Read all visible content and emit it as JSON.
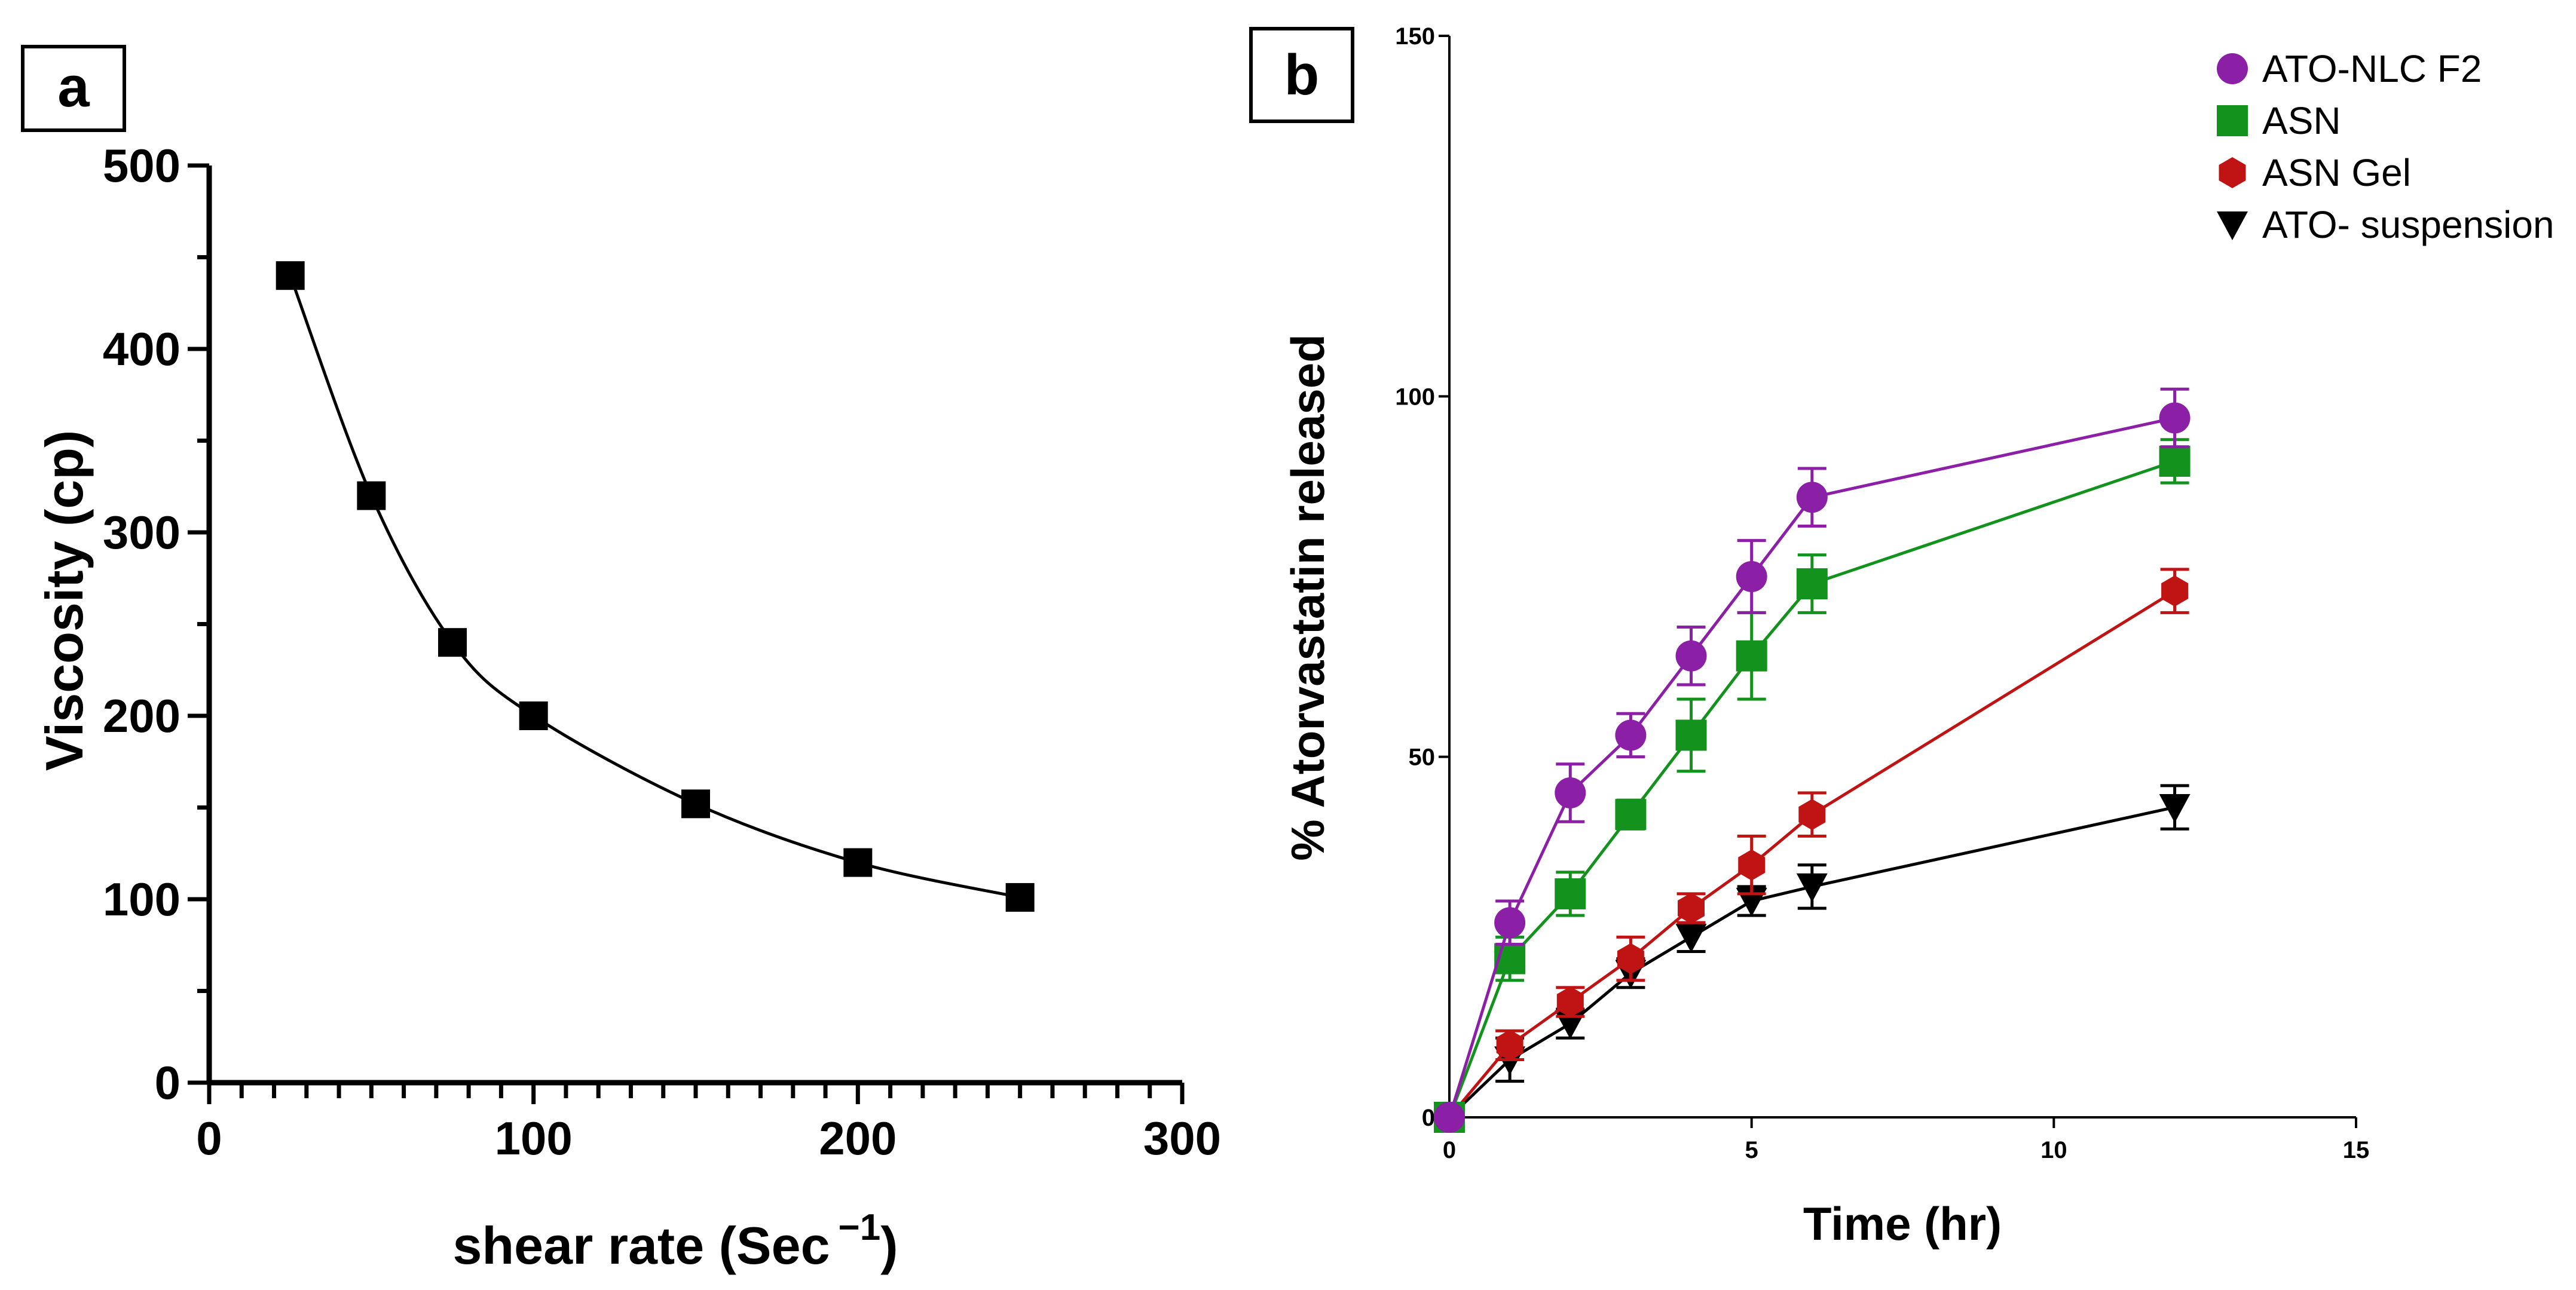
{
  "panels": [
    {
      "letter": "a"
    },
    {
      "letter": "b"
    }
  ],
  "chart_data": [
    {
      "type": "line",
      "panel": "a",
      "title": "",
      "xlabel": "shear rate (Sec",
      "xlabel_superscript": "−1",
      "xlabel_close": ")",
      "ylabel": "Viscosity (cp)",
      "xlim": [
        0,
        300
      ],
      "ylim": [
        0,
        500
      ],
      "xticks": [
        "0",
        "100",
        "200",
        "300"
      ],
      "yticks": [
        "0",
        "100",
        "200",
        "300",
        "400",
        "500"
      ],
      "grid": false,
      "series": [
        {
          "name": "Viscosity",
          "color": "#000000",
          "marker": "square",
          "x": [
            25,
            50,
            75,
            100,
            150,
            200,
            250
          ],
          "y": [
            440,
            320,
            240,
            200,
            152,
            120,
            101
          ]
        }
      ]
    },
    {
      "type": "line",
      "panel": "b",
      "title": "",
      "xlabel": "Time (hr)",
      "ylabel": "% Atorvastatin released",
      "xlim": [
        0,
        15
      ],
      "ylim": [
        0,
        150
      ],
      "xticks": [
        "0",
        "5",
        "10",
        "15"
      ],
      "yticks": [
        "0",
        "50",
        "100",
        "150"
      ],
      "grid": false,
      "legend_position": "top-right",
      "series": [
        {
          "name": "ATO-NLC F2",
          "color": "#8B1FA6",
          "marker": "circle",
          "x": [
            0,
            1,
            2,
            3,
            4,
            5,
            6,
            12
          ],
          "y": [
            0,
            27,
            45,
            53,
            64,
            75,
            86,
            97
          ],
          "err": [
            0,
            3,
            4,
            3,
            4,
            5,
            4,
            4
          ]
        },
        {
          "name": "ASN",
          "color": "#14921E",
          "marker": "square",
          "x": [
            0,
            1,
            2,
            3,
            4,
            5,
            6,
            12
          ],
          "y": [
            0,
            22,
            31,
            42,
            53,
            64,
            74,
            91
          ],
          "err": [
            0,
            3,
            3,
            2,
            5,
            6,
            4,
            3
          ]
        },
        {
          "name": "ASN Gel",
          "color": "#C01414",
          "marker": "hexagon",
          "x": [
            0,
            1,
            2,
            3,
            4,
            5,
            6,
            12
          ],
          "y": [
            0,
            10,
            16,
            22,
            29,
            35,
            42,
            73
          ],
          "err": [
            0,
            2,
            2,
            3,
            2,
            4,
            3,
            3
          ]
        },
        {
          "name": "ATO- suspension",
          "color": "#000000",
          "marker": "triangle-down",
          "x": [
            0,
            1,
            2,
            3,
            4,
            5,
            6,
            12
          ],
          "y": [
            0,
            8,
            13,
            20,
            25,
            30,
            32,
            43
          ],
          "err": [
            0,
            3,
            2,
            2,
            2,
            2,
            3,
            3
          ]
        }
      ]
    }
  ]
}
